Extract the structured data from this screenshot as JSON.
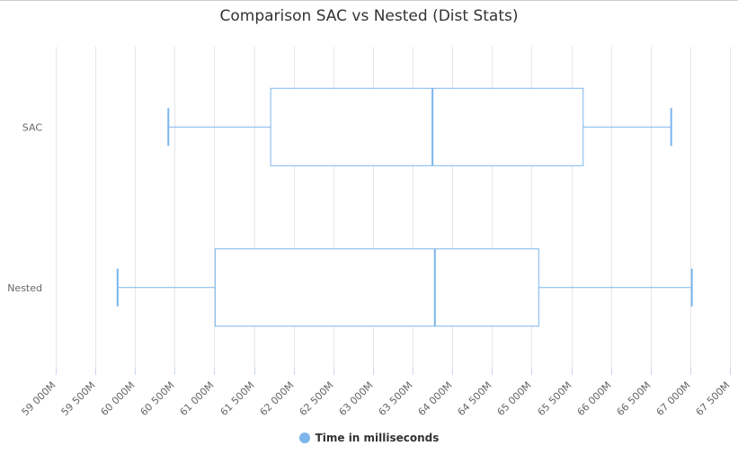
{
  "chart_data": {
    "type": "boxplot",
    "title": "Comparison SAC vs Nested (Dist Stats)",
    "orientation": "horizontal",
    "categories": [
      "SAC",
      "Nested"
    ],
    "series": [
      {
        "name": "Time in milliseconds",
        "boxes": [
          {
            "category": "SAC",
            "low": 60420,
            "q1": 61710,
            "median": 63750,
            "q3": 65650,
            "high": 66760
          },
          {
            "category": "Nested",
            "low": 59780,
            "q1": 61010,
            "median": 63780,
            "q3": 65090,
            "high": 67020
          }
        ]
      }
    ],
    "xlim": [
      59000,
      67500
    ],
    "xticks": [
      59000,
      59500,
      60000,
      60500,
      61000,
      61500,
      62000,
      62500,
      63000,
      63500,
      64000,
      64500,
      65000,
      65500,
      66000,
      66500,
      67000,
      67500
    ],
    "xtick_labels": [
      "59 000M",
      "59 500M",
      "60 000M",
      "60 500M",
      "61 000M",
      "61 500M",
      "62 000M",
      "62 500M",
      "63 000M",
      "63 500M",
      "64 000M",
      "64 500M",
      "65 000M",
      "65 500M",
      "66 000M",
      "66 500M",
      "67 000M",
      "67 500M"
    ],
    "grid": true,
    "legend_position": "bottom-center",
    "color": "#7cb5ec"
  }
}
